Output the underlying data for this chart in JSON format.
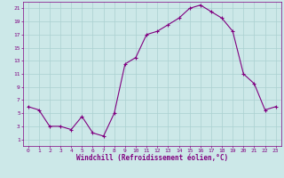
{
  "x": [
    0,
    1,
    2,
    3,
    4,
    5,
    6,
    7,
    8,
    9,
    10,
    11,
    12,
    13,
    14,
    15,
    16,
    17,
    18,
    19,
    20,
    21,
    22,
    23
  ],
  "y": [
    6.0,
    5.5,
    3.0,
    3.0,
    2.5,
    4.5,
    2.0,
    1.5,
    5.0,
    12.5,
    13.5,
    17.0,
    17.5,
    18.5,
    19.5,
    21.0,
    21.5,
    20.5,
    19.5,
    17.5,
    11.0,
    9.5,
    5.5,
    6.0
  ],
  "line_color": "#800080",
  "marker": "+",
  "marker_color": "#800080",
  "bg_color": "#cce8e8",
  "grid_color": "#aad0d0",
  "xlabel": "Windchill (Refroidissement éolien,°C)",
  "xlabel_color": "#800080",
  "tick_color": "#800080",
  "spine_color": "#800080",
  "ylim": [
    0,
    22
  ],
  "xlim": [
    -0.5,
    23.5
  ],
  "yticks": [
    1,
    3,
    5,
    7,
    9,
    11,
    13,
    15,
    17,
    19,
    21
  ],
  "xticks": [
    0,
    1,
    2,
    3,
    4,
    5,
    6,
    7,
    8,
    9,
    10,
    11,
    12,
    13,
    14,
    15,
    16,
    17,
    18,
    19,
    20,
    21,
    22,
    23
  ]
}
